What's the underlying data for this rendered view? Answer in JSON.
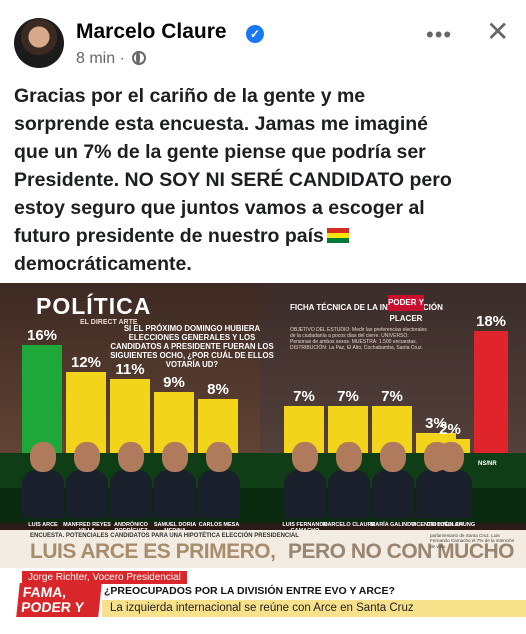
{
  "post": {
    "author": "Marcelo Claure",
    "time": "8 min",
    "text_lines": [
      "Gracias por el cariño de la gente y me",
      "sorprende esta encuesta.  Jamas me imaginé",
      "que un 7% de la gente piense que podría ser",
      "Presidente. NO SOY NI SERÉ CANDIDATO pero",
      "estoy seguro que juntos vamos a escoger al",
      "futuro presidente de nuestro país",
      "democráticamente."
    ]
  },
  "icons": {
    "more": "more-options-icon",
    "close": "close-icon",
    "verified": "verified-badge-icon",
    "globe": "globe-icon",
    "flag": "bolivia-flag-icon"
  },
  "colors": {
    "verified_blue": "#1877f2",
    "meta_gray": "#65676b",
    "bar_green": "#1ea83a",
    "bar_yellow": "#f2d51a",
    "bar_red": "#e0242c"
  },
  "image": {
    "logo": "POLÍTICA",
    "logo_sub": "EL DIRECT ARTE",
    "question": "SI EL PRÓXIMO DOMINGO HUBIERA ELECCIONES GENERALES Y LOS CANDIDATOS A PRESIDENTE FUERAN LOS SIGUIENTES OCHO, ¿POR CUÁL DE ELLOS VOTARÍA UD?",
    "ficha_title": "FICHA TÉCNICA DE LA INVESTIGACIÓN",
    "ficha_body": "OBJETIVO DEL ESTUDIO: Medir las preferencias electorales de la ciudadanía a pocos días del cierre. UNIVERSO: Personas de ambos sexos. MUESTRA: 1.500 encuestas. DISTRIBUCIÓN: La Paz, El Alto, Cochabamba, Santa Cruz.",
    "badge": "PODER Y PLACER",
    "nsnr": "NS/NR",
    "encuesta_label": "ENCUESTA. POTENCIALES CANDIDATOS PARA UNA HIPOTÉTICA ELECCIÓN PRESIDENCIAL",
    "headline_left": "LUIS ARCE ES PRIMERO,",
    "headline_right": "PERO NO CON MUCHO",
    "right_cols": "parlamentario de Santa Cruz. Luis Fernando Camacho el 7% de la intención de voto.",
    "presenter": "Jorge Richter, Vocero Presidencial",
    "show_logo": "FAMA, PODER Y GANAS",
    "ticker_question": "¿PREOCUPADOS POR LA DIVISIÓN ENTRE EVO Y ARCE?",
    "ticker_text": "La izquierda internacional se reúne con Arce en Santa Cruz"
  },
  "chart_data": {
    "type": "bar",
    "title": "SI EL PRÓXIMO DOMINGO HUBIERA ELECCIONES GENERALES Y LOS CANDIDATOS A PRESIDENTE FUERAN LOS SIGUIENTES OCHO, ¿POR CUÁL DE ELLOS VOTARÍA UD?",
    "categories": [
      "LUIS ARCE",
      "MANFRED REYES VILLA",
      "ANDRÓNICO RODRÍGUEZ",
      "SAMUEL DORIA MEDINA",
      "CARLOS MESA",
      "LUIS FERNANDO CAMACHO",
      "MARCELO CLAURE",
      "MARÍA GALINDO",
      "VICENTE CUÉLLAR",
      "CHI HYUN CHUNG",
      "NS/NR"
    ],
    "values": [
      16,
      12,
      11,
      9,
      8,
      7,
      7,
      7,
      3,
      2,
      18
    ],
    "labels": [
      "16%",
      "12%",
      "11%",
      "9%",
      "8%",
      "7%",
      "7%",
      "7%",
      "3%",
      "2%",
      "18%"
    ],
    "bar_colors": [
      "green",
      "yellow",
      "yellow",
      "yellow",
      "yellow",
      "yellow",
      "yellow",
      "yellow",
      "yellow",
      "yellow",
      "red"
    ],
    "ylim": [
      0,
      20
    ]
  }
}
